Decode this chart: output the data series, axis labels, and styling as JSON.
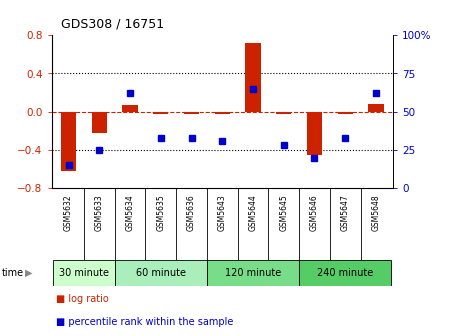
{
  "title": "GDS308 / 16751",
  "samples": [
    "GSM5632",
    "GSM5633",
    "GSM5634",
    "GSM5635",
    "GSM5636",
    "GSM5643",
    "GSM5644",
    "GSM5645",
    "GSM5646",
    "GSM5647",
    "GSM5648"
  ],
  "log_ratio": [
    -0.62,
    -0.22,
    0.07,
    -0.02,
    -0.02,
    -0.02,
    0.72,
    -0.02,
    -0.45,
    -0.02,
    0.08
  ],
  "percentile_rank": [
    15,
    25,
    62,
    33,
    33,
    31,
    65,
    28,
    20,
    33,
    62
  ],
  "groups": [
    {
      "label": "30 minute",
      "indices": [
        0,
        1
      ],
      "color": "#ccffcc"
    },
    {
      "label": "60 minute",
      "indices": [
        2,
        3,
        4
      ],
      "color": "#aaeebb"
    },
    {
      "label": "120 minute",
      "indices": [
        5,
        6,
        7
      ],
      "color": "#77dd88"
    },
    {
      "label": "240 minute",
      "indices": [
        8,
        9,
        10
      ],
      "color": "#55cc66"
    }
  ],
  "bar_color": "#cc2200",
  "dot_color": "#0000cc",
  "ylim_left": [
    -0.8,
    0.8
  ],
  "ylim_right": [
    0,
    100
  ],
  "yticks_left": [
    -0.8,
    -0.4,
    0.0,
    0.4,
    0.8
  ],
  "yticks_right": [
    0,
    25,
    50,
    75,
    100
  ],
  "hlines_dotted": [
    0.4,
    -0.4
  ],
  "hline_zero_color": "#cc2200",
  "bg_color": "#ffffff"
}
